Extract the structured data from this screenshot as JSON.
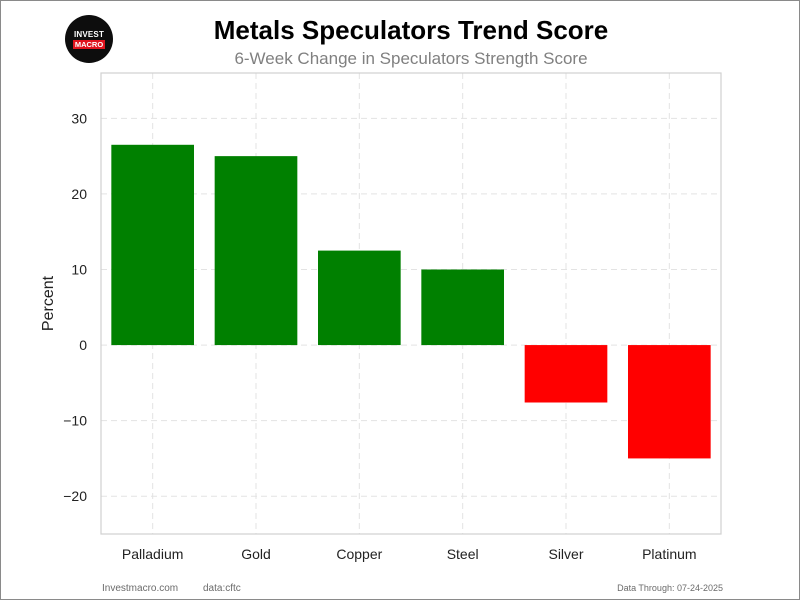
{
  "logo": {
    "line1": "INVEST",
    "line2": "MACRO"
  },
  "footer": {
    "source": "Investmacro.com",
    "data": "data:cftc",
    "date": "Data Through: 07-24-2025"
  },
  "chart_data": {
    "type": "bar",
    "title": "Metals Speculators Trend Score",
    "subtitle": "6-Week Change in Speculators Strength Score",
    "xlabel": "",
    "ylabel": "Percent",
    "categories": [
      "Palladium",
      "Gold",
      "Copper",
      "Steel",
      "Silver",
      "Platinum"
    ],
    "values": [
      26.5,
      25.0,
      12.5,
      10.0,
      -7.6,
      -15.0
    ],
    "ylim": [
      -25,
      36
    ],
    "yticks": [
      -20,
      -10,
      0,
      10,
      20,
      30
    ],
    "ytick_labels": [
      "−20",
      "−10",
      "0",
      "10",
      "20",
      "30"
    ],
    "grid": true,
    "positive_color": "#008000",
    "negative_color": "#ff0000"
  }
}
